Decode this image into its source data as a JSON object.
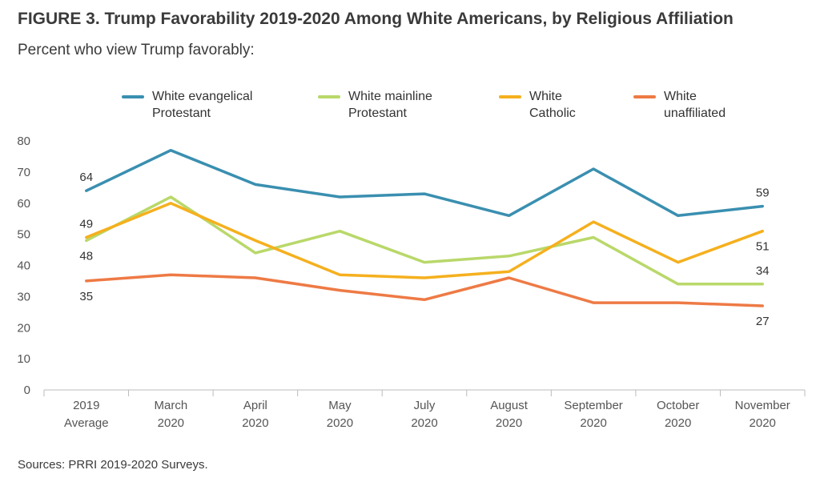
{
  "title": "FIGURE 3. Trump Favorability 2019-2020 Among White Americans, by Religious Affiliation",
  "subtitle": "Percent who view Trump favorably:",
  "source": "Sources: PRRI 2019-2020 Surveys.",
  "chart_data": {
    "type": "line",
    "categories": [
      "2019\nAverage",
      "March\n2020",
      "April\n2020",
      "May\n2020",
      "July\n2020",
      "August\n2020",
      "September\n2020",
      "October\n2020",
      "November\n2020"
    ],
    "ylim": [
      0,
      80
    ],
    "yticks": [
      0,
      10,
      20,
      30,
      40,
      50,
      60,
      70,
      80
    ],
    "grid": false,
    "legend_position": "top",
    "series": [
      {
        "name": "White evangelical\nProtestant",
        "color": "#3a8fb0",
        "values": [
          64,
          77,
          66,
          62,
          63,
          56,
          71,
          56,
          59
        ]
      },
      {
        "name": "White mainline\nProtestant",
        "color": "#b9d86a",
        "values": [
          48,
          62,
          44,
          51,
          41,
          43,
          49,
          34,
          34
        ]
      },
      {
        "name": "White\nCatholic",
        "color": "#f5b01e",
        "values": [
          49,
          60,
          48,
          37,
          36,
          38,
          54,
          41,
          51
        ]
      },
      {
        "name": "White\nunaffiliated",
        "color": "#ee7a45",
        "values": [
          35,
          37,
          36,
          32,
          29,
          36,
          28,
          28,
          27
        ]
      }
    ],
    "data_labels": [
      {
        "series": 0,
        "index": 0,
        "text": "64",
        "pos": "above"
      },
      {
        "series": 2,
        "index": 0,
        "text": "49",
        "pos": "above"
      },
      {
        "series": 1,
        "index": 0,
        "text": "48",
        "pos": "below"
      },
      {
        "series": 3,
        "index": 0,
        "text": "35",
        "pos": "below"
      },
      {
        "series": 0,
        "index": 8,
        "text": "59",
        "pos": "above"
      },
      {
        "series": 2,
        "index": 8,
        "text": "51",
        "pos": "below"
      },
      {
        "series": 1,
        "index": 8,
        "text": "34",
        "pos": "above"
      },
      {
        "series": 3,
        "index": 8,
        "text": "27",
        "pos": "below"
      }
    ]
  }
}
